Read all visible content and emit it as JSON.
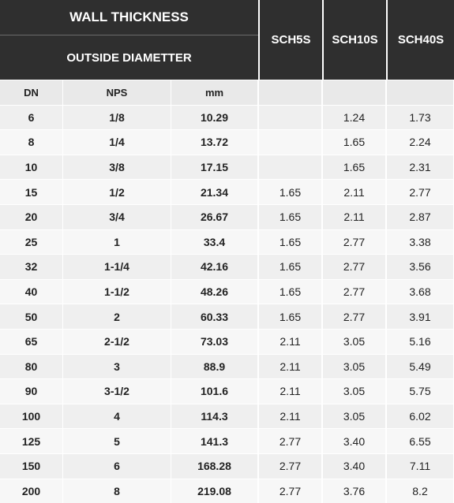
{
  "header": {
    "title": "WALL THICKNESS",
    "subtitle": "OUTSIDE DIAMETTER",
    "schedules": [
      "SCH5S",
      "SCH10S",
      "SCH40S"
    ]
  },
  "columns": {
    "dn": "DN",
    "nps": "NPS",
    "mm": "mm"
  },
  "rows": [
    {
      "dn": "6",
      "nps": "1/8",
      "mm": "10.29",
      "sch5s": "",
      "sch10s": "1.24",
      "sch40s": "1.73"
    },
    {
      "dn": "8",
      "nps": "1/4",
      "mm": "13.72",
      "sch5s": "",
      "sch10s": "1.65",
      "sch40s": "2.24"
    },
    {
      "dn": "10",
      "nps": "3/8",
      "mm": "17.15",
      "sch5s": "",
      "sch10s": "1.65",
      "sch40s": "2.31"
    },
    {
      "dn": "15",
      "nps": "1/2",
      "mm": "21.34",
      "sch5s": "1.65",
      "sch10s": "2.11",
      "sch40s": "2.77"
    },
    {
      "dn": "20",
      "nps": "3/4",
      "mm": "26.67",
      "sch5s": "1.65",
      "sch10s": "2.11",
      "sch40s": "2.87"
    },
    {
      "dn": "25",
      "nps": "1",
      "mm": "33.4",
      "sch5s": "1.65",
      "sch10s": "2.77",
      "sch40s": "3.38"
    },
    {
      "dn": "32",
      "nps": "1-1/4",
      "mm": "42.16",
      "sch5s": "1.65",
      "sch10s": "2.77",
      "sch40s": "3.56"
    },
    {
      "dn": "40",
      "nps": "1-1/2",
      "mm": "48.26",
      "sch5s": "1.65",
      "sch10s": "2.77",
      "sch40s": "3.68"
    },
    {
      "dn": "50",
      "nps": "2",
      "mm": "60.33",
      "sch5s": "1.65",
      "sch10s": "2.77",
      "sch40s": "3.91"
    },
    {
      "dn": "65",
      "nps": "2-1/2",
      "mm": "73.03",
      "sch5s": "2.11",
      "sch10s": "3.05",
      "sch40s": "5.16"
    },
    {
      "dn": "80",
      "nps": "3",
      "mm": "88.9",
      "sch5s": "2.11",
      "sch10s": "3.05",
      "sch40s": "5.49"
    },
    {
      "dn": "90",
      "nps": "3-1/2",
      "mm": "101.6",
      "sch5s": "2.11",
      "sch10s": "3.05",
      "sch40s": "5.75"
    },
    {
      "dn": "100",
      "nps": "4",
      "mm": "114.3",
      "sch5s": "2.11",
      "sch10s": "3.05",
      "sch40s": "6.02"
    },
    {
      "dn": "125",
      "nps": "5",
      "mm": "141.3",
      "sch5s": "2.77",
      "sch10s": "3.40",
      "sch40s": "6.55"
    },
    {
      "dn": "150",
      "nps": "6",
      "mm": "168.28",
      "sch5s": "2.77",
      "sch10s": "3.40",
      "sch40s": "7.11"
    },
    {
      "dn": "200",
      "nps": "8",
      "mm": "219.08",
      "sch5s": "2.77",
      "sch10s": "3.76",
      "sch40s": "8.2"
    }
  ],
  "colors": {
    "header_bg": "#2f2f2f",
    "header_text": "#ffffff",
    "row_odd": "#efefef",
    "row_even": "#f7f7f7"
  }
}
